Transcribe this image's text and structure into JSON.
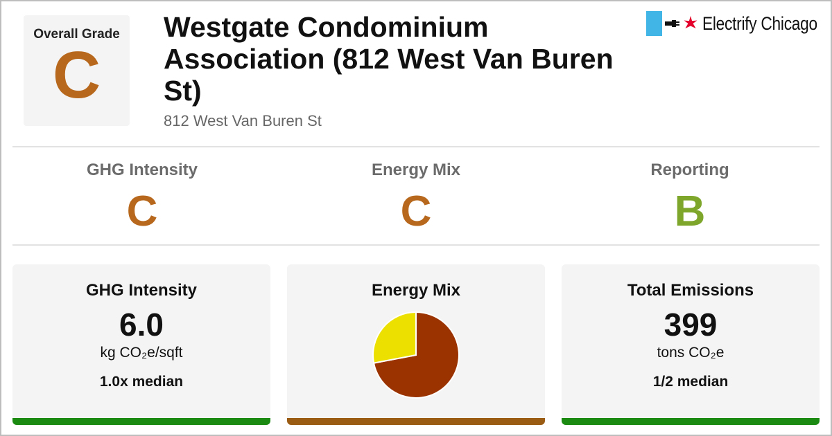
{
  "overall": {
    "label": "Overall Grade",
    "grade": "C"
  },
  "building": {
    "title": "Westgate Condominium Association (812 West Van Buren St)",
    "address": "812 West Van Buren St"
  },
  "logo": {
    "text": "Electrify Chicago",
    "icons": [
      "chicago-flag-stripe",
      "plug-icon",
      "red-star-icon"
    ]
  },
  "subgrades": [
    {
      "name": "GHG Intensity",
      "grade": "C"
    },
    {
      "name": "Energy Mix",
      "grade": "C"
    },
    {
      "name": "Reporting",
      "grade": "B"
    }
  ],
  "cards": {
    "ghg": {
      "title": "GHG Intensity",
      "value": "6.0",
      "unit": "kg CO₂e/sqft",
      "median": "1.0x median"
    },
    "mix": {
      "title": "Energy Mix"
    },
    "emissions": {
      "title": "Total Emissions",
      "value": "399",
      "unit": "tons CO₂e",
      "median": "1/2 median"
    }
  },
  "chart_data": {
    "type": "pie",
    "slices": [
      {
        "value": 0.72,
        "color": "#9b3300"
      },
      {
        "value": 0.28,
        "color": "#ece000"
      }
    ]
  },
  "colors": {
    "grade_c": "#b8681c",
    "grade_b": "#7ea62b",
    "bar_green": "#1a8a12",
    "bar_brown": "#9a5c13",
    "flag_blue": "#41b6e6",
    "star_red": "#e4002b"
  }
}
